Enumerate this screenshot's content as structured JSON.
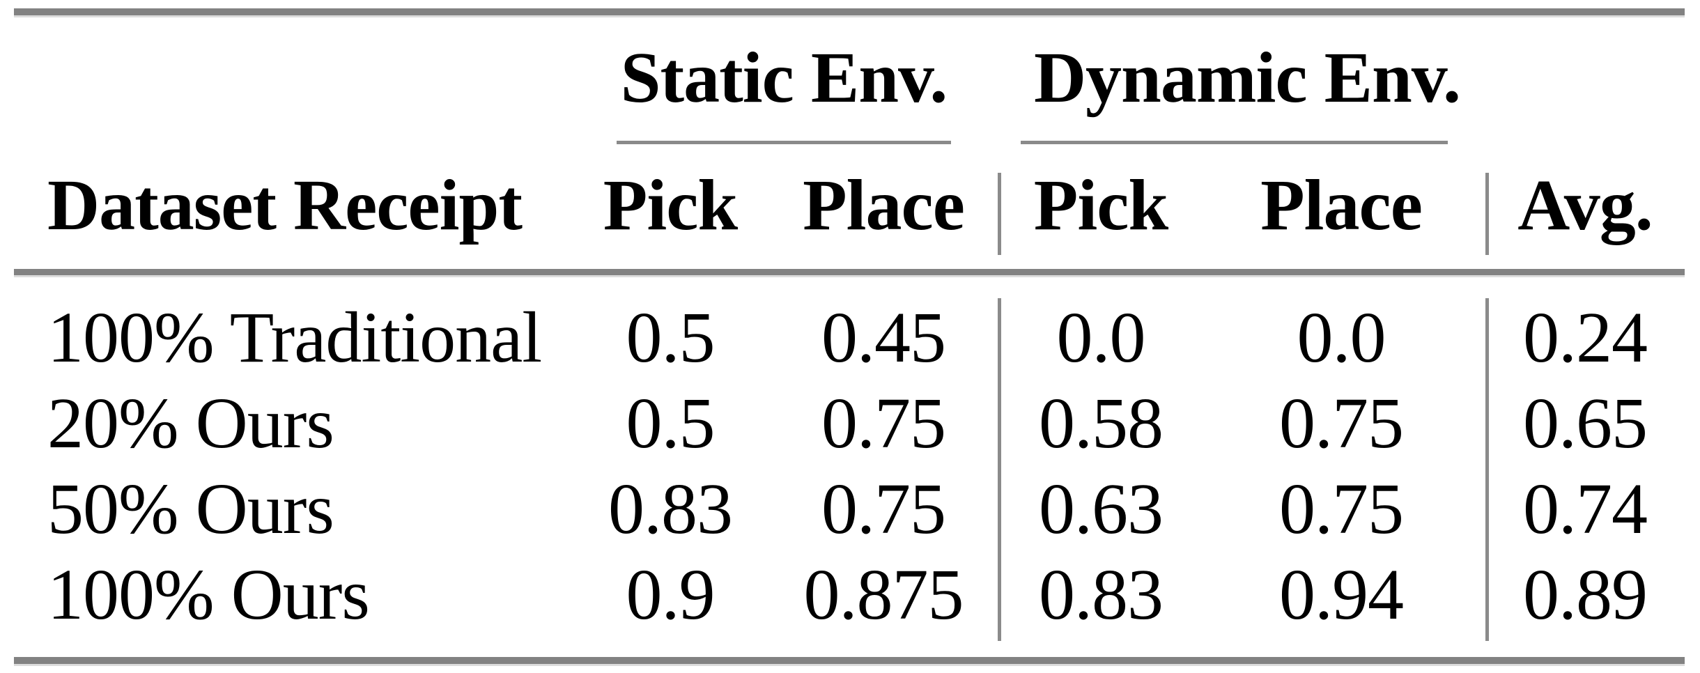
{
  "table": {
    "group_headers": [
      {
        "label": "Static Env."
      },
      {
        "label": "Dynamic Env."
      }
    ],
    "column_headers": {
      "row_label": "Dataset Receipt",
      "static_pick": "Pick",
      "static_place": "Place",
      "dynamic_pick": "Pick",
      "dynamic_place": "Place",
      "avg": "Avg."
    },
    "rows": [
      {
        "label": "100% Traditional",
        "values": [
          "0.5",
          "0.45",
          "0.0",
          "0.0",
          "0.24"
        ]
      },
      {
        "label": "20% Ours",
        "values": [
          "0.5",
          "0.75",
          "0.58",
          "0.75",
          "0.65"
        ]
      },
      {
        "label": "50% Ours",
        "values": [
          "0.83",
          "0.75",
          "0.63",
          "0.75",
          "0.74"
        ]
      },
      {
        "label": "100% Ours",
        "values": [
          "0.9",
          "0.875",
          "0.83",
          "0.94",
          "0.89"
        ]
      }
    ],
    "rule_color": "#828282"
  }
}
